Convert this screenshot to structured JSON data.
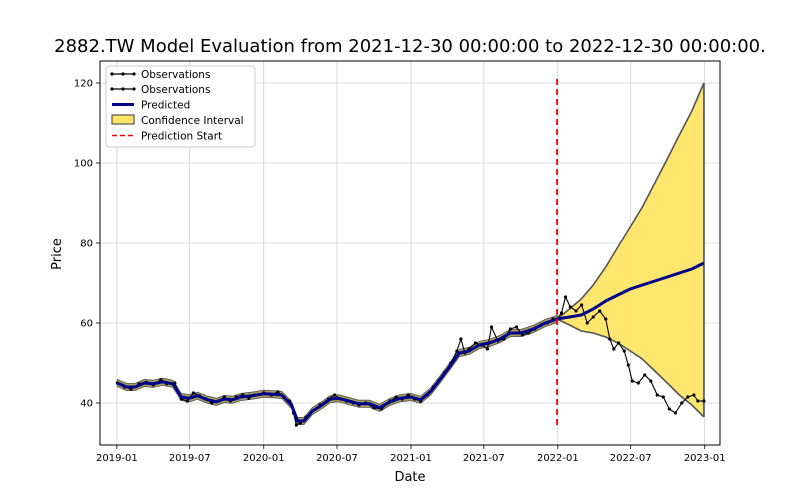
{
  "chart_data": {
    "type": "line",
    "title": "2882.TW Model Evaluation from 2021-12-30 00:00:00 to 2022-12-30 00:00:00.",
    "xlabel": "Date",
    "ylabel": "Price",
    "xlim": [
      "2018-11-20",
      "2023-02-08"
    ],
    "ylim": [
      29.5,
      125.5
    ],
    "x_ticks": [
      "2019-01",
      "2019-07",
      "2020-01",
      "2020-07",
      "2021-01",
      "2021-07",
      "2022-01",
      "2022-07",
      "2023-01"
    ],
    "y_ticks": [
      40,
      60,
      80,
      100,
      120
    ],
    "grid": true,
    "legend_position": "top-left",
    "prediction_start": "2021-12-30",
    "legend": [
      {
        "label": "Observations",
        "type": "line-marker",
        "color": "#000000"
      },
      {
        "label": "Observations",
        "type": "line-marker",
        "color": "#000000"
      },
      {
        "label": "Predicted",
        "type": "thick-line",
        "color": "#00008b"
      },
      {
        "label": "Confidence Interval",
        "type": "patch",
        "color": "#ffe566"
      },
      {
        "label": "Prediction Start",
        "type": "dashed-line",
        "color": "#ff0000"
      }
    ],
    "series": [
      {
        "name": "Observations",
        "color": "#000000",
        "points": [
          [
            "2019-01-02",
            45.0
          ],
          [
            "2019-01-20",
            44.0
          ],
          [
            "2019-02-05",
            43.5
          ],
          [
            "2019-02-25",
            44.8
          ],
          [
            "2019-03-15",
            45.2
          ],
          [
            "2019-04-01",
            44.5
          ],
          [
            "2019-04-20",
            45.8
          ],
          [
            "2019-05-05",
            44.8
          ],
          [
            "2019-05-25",
            45.0
          ],
          [
            "2019-06-10",
            41.0
          ],
          [
            "2019-06-25",
            40.5
          ],
          [
            "2019-07-10",
            42.5
          ],
          [
            "2019-07-25",
            41.8
          ],
          [
            "2019-08-10",
            41.0
          ],
          [
            "2019-08-25",
            40.0
          ],
          [
            "2019-09-10",
            40.5
          ],
          [
            "2019-09-25",
            41.5
          ],
          [
            "2019-10-10",
            40.5
          ],
          [
            "2019-10-25",
            41.5
          ],
          [
            "2019-11-10",
            42.0
          ],
          [
            "2019-11-25",
            41.2
          ],
          [
            "2019-12-10",
            42.0
          ],
          [
            "2020-01-01",
            42.5
          ],
          [
            "2020-01-20",
            42.0
          ],
          [
            "2020-02-05",
            42.8
          ],
          [
            "2020-02-20",
            41.5
          ],
          [
            "2020-03-05",
            40.5
          ],
          [
            "2020-03-15",
            37.5
          ],
          [
            "2020-03-22",
            34.5
          ],
          [
            "2020-04-01",
            35.0
          ],
          [
            "2020-04-15",
            36.5
          ],
          [
            "2020-05-01",
            38.0
          ],
          [
            "2020-05-20",
            39.5
          ],
          [
            "2020-06-10",
            41.0
          ],
          [
            "2020-06-25",
            42.0
          ],
          [
            "2020-07-10",
            41.0
          ],
          [
            "2020-07-25",
            40.5
          ],
          [
            "2020-08-10",
            40.0
          ],
          [
            "2020-08-25",
            39.5
          ],
          [
            "2020-09-10",
            40.0
          ],
          [
            "2020-10-01",
            38.8
          ],
          [
            "2020-10-20",
            38.5
          ],
          [
            "2020-11-10",
            40.5
          ],
          [
            "2020-11-25",
            41.5
          ],
          [
            "2020-12-10",
            41.0
          ],
          [
            "2020-12-25",
            42.0
          ],
          [
            "2021-01-10",
            41.0
          ],
          [
            "2021-01-25",
            40.5
          ],
          [
            "2021-02-10",
            42.0
          ],
          [
            "2021-02-25",
            44.0
          ],
          [
            "2021-03-10",
            45.5
          ],
          [
            "2021-03-25",
            47.5
          ],
          [
            "2021-04-10",
            50.0
          ],
          [
            "2021-04-25",
            53.0
          ],
          [
            "2021-05-05",
            56.0
          ],
          [
            "2021-05-15",
            52.5
          ],
          [
            "2021-05-25",
            53.5
          ],
          [
            "2021-06-10",
            55.0
          ],
          [
            "2021-06-25",
            54.5
          ],
          [
            "2021-07-10",
            53.5
          ],
          [
            "2021-07-20",
            59.0
          ],
          [
            "2021-08-05",
            55.5
          ],
          [
            "2021-08-20",
            56.0
          ],
          [
            "2021-09-05",
            58.5
          ],
          [
            "2021-09-20",
            59.0
          ],
          [
            "2021-10-05",
            57.0
          ],
          [
            "2021-10-20",
            57.5
          ],
          [
            "2021-11-05",
            58.5
          ],
          [
            "2021-11-20",
            59.5
          ],
          [
            "2021-12-05",
            60.0
          ],
          [
            "2021-12-20",
            61.0
          ],
          [
            "2021-12-30",
            61.0
          ],
          [
            "2022-01-10",
            62.5
          ],
          [
            "2022-01-20",
            66.5
          ],
          [
            "2022-02-01",
            64.0
          ],
          [
            "2022-02-15",
            63.0
          ],
          [
            "2022-03-01",
            64.5
          ],
          [
            "2022-03-15",
            60.0
          ],
          [
            "2022-03-30",
            61.5
          ],
          [
            "2022-04-15",
            63.0
          ],
          [
            "2022-04-30",
            61.0
          ],
          [
            "2022-05-10",
            56.0
          ],
          [
            "2022-05-20",
            53.5
          ],
          [
            "2022-06-01",
            55.0
          ],
          [
            "2022-06-15",
            53.0
          ],
          [
            "2022-06-25",
            49.5
          ],
          [
            "2022-07-05",
            45.5
          ],
          [
            "2022-07-20",
            45.0
          ],
          [
            "2022-08-05",
            47.0
          ],
          [
            "2022-08-20",
            45.5
          ],
          [
            "2022-09-05",
            42.0
          ],
          [
            "2022-09-20",
            41.5
          ],
          [
            "2022-10-05",
            38.5
          ],
          [
            "2022-10-20",
            37.5
          ],
          [
            "2022-11-05",
            40.0
          ],
          [
            "2022-11-20",
            41.5
          ],
          [
            "2022-12-05",
            42.0
          ],
          [
            "2022-12-15",
            40.5
          ],
          [
            "2022-12-30",
            40.5
          ]
        ]
      },
      {
        "name": "Predicted",
        "color": "#00008b",
        "points": [
          [
            "2019-01-02",
            45.0
          ],
          [
            "2019-01-25",
            44.0
          ],
          [
            "2019-02-15",
            44.0
          ],
          [
            "2019-03-10",
            45.0
          ],
          [
            "2019-04-01",
            44.8
          ],
          [
            "2019-04-25",
            45.3
          ],
          [
            "2019-05-20",
            44.8
          ],
          [
            "2019-06-10",
            41.5
          ],
          [
            "2019-06-30",
            41.2
          ],
          [
            "2019-07-20",
            41.8
          ],
          [
            "2019-08-15",
            40.8
          ],
          [
            "2019-09-05",
            40.3
          ],
          [
            "2019-09-25",
            41.0
          ],
          [
            "2019-10-15",
            40.8
          ],
          [
            "2019-11-05",
            41.5
          ],
          [
            "2019-12-01",
            41.8
          ],
          [
            "2020-01-01",
            42.3
          ],
          [
            "2020-01-25",
            42.2
          ],
          [
            "2020-02-15",
            42.0
          ],
          [
            "2020-03-10",
            39.5
          ],
          [
            "2020-03-25",
            35.5
          ],
          [
            "2020-04-10",
            35.5
          ],
          [
            "2020-05-01",
            38.0
          ],
          [
            "2020-05-25",
            39.5
          ],
          [
            "2020-06-15",
            41.0
          ],
          [
            "2020-07-05",
            41.2
          ],
          [
            "2020-07-30",
            40.5
          ],
          [
            "2020-08-25",
            39.8
          ],
          [
            "2020-09-20",
            39.8
          ],
          [
            "2020-10-15",
            38.8
          ],
          [
            "2020-11-10",
            40.3
          ],
          [
            "2020-12-05",
            41.2
          ],
          [
            "2021-01-01",
            41.5
          ],
          [
            "2021-01-25",
            40.8
          ],
          [
            "2021-02-20",
            43.0
          ],
          [
            "2021-03-15",
            46.0
          ],
          [
            "2021-04-10",
            49.5
          ],
          [
            "2021-05-01",
            52.5
          ],
          [
            "2021-05-25",
            53.0
          ],
          [
            "2021-06-20",
            54.5
          ],
          [
            "2021-07-15",
            55.0
          ],
          [
            "2021-08-10",
            56.0
          ],
          [
            "2021-09-05",
            57.5
          ],
          [
            "2021-10-01",
            57.5
          ],
          [
            "2021-11-01",
            58.5
          ],
          [
            "2021-12-01",
            60.0
          ],
          [
            "2021-12-30",
            61.0
          ],
          [
            "2022-01-30",
            61.5
          ],
          [
            "2022-02-28",
            62.0
          ],
          [
            "2022-03-30",
            63.5
          ],
          [
            "2022-04-30",
            65.5
          ],
          [
            "2022-05-30",
            67.0
          ],
          [
            "2022-06-30",
            68.5
          ],
          [
            "2022-07-30",
            69.5
          ],
          [
            "2022-08-30",
            70.5
          ],
          [
            "2022-09-30",
            71.5
          ],
          [
            "2022-10-30",
            72.5
          ],
          [
            "2022-11-30",
            73.5
          ],
          [
            "2022-12-30",
            75.0
          ]
        ]
      }
    ],
    "confidence_interval": {
      "name": "Confidence Interval",
      "color": "#ffe566",
      "points": [
        [
          "2021-12-30",
          61.0,
          61.0
        ],
        [
          "2022-01-30",
          63.5,
          59.5
        ],
        [
          "2022-02-28",
          66.0,
          58.0
        ],
        [
          "2022-03-30",
          69.5,
          57.5
        ],
        [
          "2022-04-30",
          74.0,
          56.5
        ],
        [
          "2022-05-30",
          79.0,
          55.0
        ],
        [
          "2022-06-30",
          84.0,
          53.0
        ],
        [
          "2022-07-30",
          89.0,
          51.0
        ],
        [
          "2022-08-30",
          95.0,
          48.0
        ],
        [
          "2022-09-30",
          101.0,
          45.0
        ],
        [
          "2022-10-30",
          107.0,
          42.0
        ],
        [
          "2022-11-30",
          113.0,
          39.5
        ],
        [
          "2022-12-30",
          120.0,
          36.5
        ]
      ]
    }
  }
}
